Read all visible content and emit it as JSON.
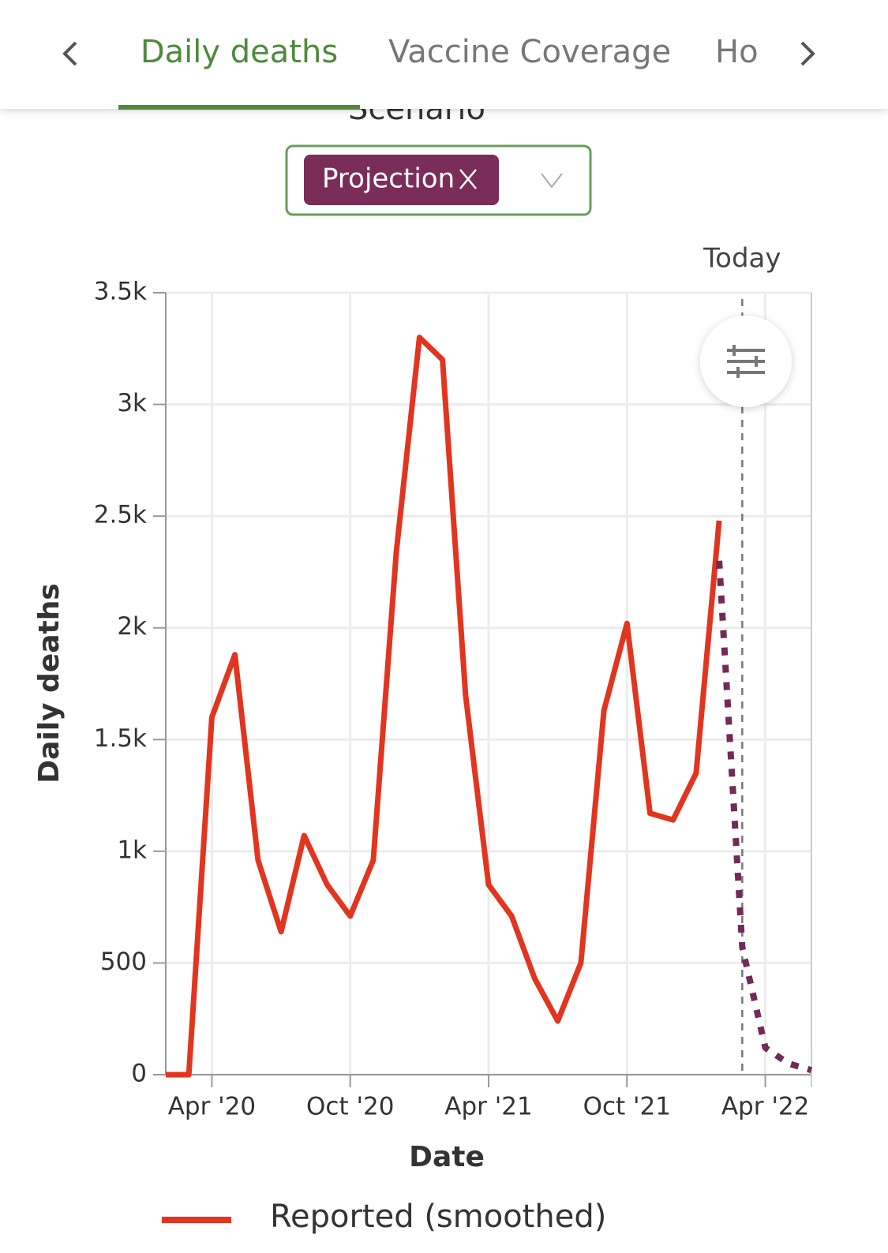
{
  "tabs": [
    "Daily deaths",
    "Vaccine Coverage",
    "Ho"
  ],
  "scenario_label": "Scenario",
  "chart_data": {
    "type": "line",
    "x": [
      "2020-02",
      "2020-03",
      "2020-04",
      "2020-05",
      "2020-06",
      "2020-07",
      "2020-08",
      "2020-09",
      "2020-10",
      "2020-11",
      "2020-12",
      "2021-01",
      "2021-02",
      "2021-03",
      "2021-04",
      "2021-05",
      "2021-06",
      "2021-07",
      "2021-08",
      "2021-09",
      "2021-10",
      "2021-11",
      "2021-12",
      "2022-01",
      "2022-02",
      "2022-03",
      "2022-04",
      "2022-05",
      "2022-06"
    ],
    "series": [
      {
        "name": "Reported (smoothed)",
        "color": "#e2351f",
        "values": [
          0,
          0,
          1600,
          1880,
          960,
          640,
          1070,
          850,
          710,
          960,
          2340,
          3300,
          3200,
          1700,
          850,
          710,
          430,
          240,
          500,
          1630,
          2020,
          1170,
          1140,
          1350,
          2480,
          null,
          null,
          null,
          null
        ]
      },
      {
        "name": "Projection",
        "color": "#722a58",
        "values": [
          null,
          null,
          null,
          null,
          null,
          null,
          null,
          null,
          null,
          null,
          null,
          null,
          null,
          null,
          null,
          null,
          null,
          null,
          null,
          null,
          null,
          null,
          null,
          null,
          2300,
          570,
          120,
          50,
          20
        ]
      }
    ],
    "xlabel": "Date",
    "ylabel": "Daily deaths",
    "xlim": [
      "2020-02",
      "2022-06"
    ],
    "xticks": [
      {
        "value": "2020-04",
        "label": "Apr '20"
      },
      {
        "value": "2020-10",
        "label": "Oct '20"
      },
      {
        "value": "2021-04",
        "label": "Apr '21"
      },
      {
        "value": "2021-10",
        "label": "Oct '21"
      },
      {
        "value": "2022-04",
        "label": "Apr '22"
      }
    ],
    "ylim": [
      0,
      3500
    ],
    "yticks": [
      0,
      500,
      {
        "value": 1000,
        "label": "1k"
      },
      {
        "value": 1500,
        "label": "1.5k"
      },
      {
        "value": 2000,
        "label": "2k"
      },
      {
        "value": 2500,
        "label": "2.5k"
      },
      {
        "value": 3000,
        "label": "3k"
      },
      {
        "value": 3500,
        "label": "3.5k"
      }
    ],
    "grid": true,
    "annotations": [
      {
        "x": "2022-03",
        "text": "Today"
      }
    ]
  }
}
